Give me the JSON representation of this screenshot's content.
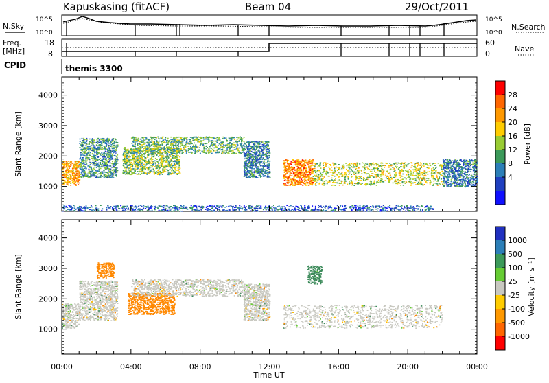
{
  "header": {
    "station": "Kapuskasing (fitACF)",
    "beam": "Beam 04",
    "date": "29/Oct/2011"
  },
  "strip1": {
    "left_label": "N.Sky",
    "right_label": "N.Search",
    "y_top_label": "10^5",
    "y_bottom_label": "10^0",
    "right_top_label": "10^5",
    "right_bottom_label": "10^0"
  },
  "strip2": {
    "left_label_1": "Freq.",
    "left_label_2": "[MHz]",
    "y_top": "18",
    "y_bottom": "8",
    "right_label": "Nave",
    "right_top": "60",
    "right_bottom": "0"
  },
  "cpid": {
    "label": "CPID",
    "value": "themis 3300"
  },
  "power_panel": {
    "ylabel": "Slant Range [km]",
    "colorbar_label": "Power [dB]",
    "colorbar_ticks": [
      "28",
      "24",
      "20",
      "16",
      "12",
      "8",
      "4"
    ],
    "colorbar_colors": [
      "#ff0000",
      "#ff6600",
      "#ff9900",
      "#ffcc00",
      "#99cc33",
      "#3c9a5a",
      "#2c7fb8",
      "#2040c0",
      "#1010ff"
    ]
  },
  "velocity_panel": {
    "ylabel": "Slant Range [km]",
    "colorbar_label": "Velocity [m s⁻¹]",
    "colorbar_ticks": [
      "1000",
      "500",
      "100",
      "25",
      "-25",
      "-100",
      "-500",
      "-1000"
    ],
    "colorbar_colors": [
      "#2030c0",
      "#2c7fb8",
      "#3c9a5a",
      "#66cc33",
      "#c8c8c0",
      "#ffcc00",
      "#ff9900",
      "#ff6600",
      "#ff0000"
    ]
  },
  "xaxis": {
    "label": "Time UT",
    "ticks": [
      "00:00",
      "04:00",
      "08:00",
      "12:00",
      "16:00",
      "20:00",
      "00:00"
    ]
  },
  "chart_data": [
    {
      "type": "heatmap",
      "title": "Power",
      "ylabel": "Slant Range [km]",
      "xlabel": "",
      "x_ticks": [
        "00:00",
        "04:00",
        "08:00",
        "12:00",
        "16:00",
        "20:00",
        "00:00"
      ],
      "y_ticks": [
        1000,
        2000,
        3000,
        4000
      ],
      "ylim": [
        180,
        4600
      ],
      "xlim_hours": [
        0,
        24
      ],
      "colorbar": {
        "label": "Power [dB]",
        "ticks": [
          4,
          8,
          12,
          16,
          20,
          24,
          28
        ],
        "range": [
          0,
          30
        ]
      },
      "scatter_regions": [
        {
          "t_start": 0.0,
          "t_end": 1.0,
          "range_lo": 1050,
          "range_hi": 1850,
          "power": 22
        },
        {
          "t_start": 1.0,
          "t_end": 3.2,
          "range_lo": 1300,
          "range_hi": 2600,
          "power": 10
        },
        {
          "t_start": 3.5,
          "t_end": 6.8,
          "range_lo": 1400,
          "range_hi": 2300,
          "power": 14
        },
        {
          "t_start": 4.0,
          "t_end": 10.5,
          "range_lo": 2100,
          "range_hi": 2650,
          "power": 12
        },
        {
          "t_start": 10.5,
          "t_end": 12.0,
          "range_lo": 1300,
          "range_hi": 2500,
          "power": 8
        },
        {
          "t_start": 12.8,
          "t_end": 14.5,
          "range_lo": 1050,
          "range_hi": 1900,
          "power": 24
        },
        {
          "t_start": 14.5,
          "t_end": 22.0,
          "range_lo": 1050,
          "range_hi": 1800,
          "power": 16
        },
        {
          "t_start": 22.0,
          "t_end": 24.0,
          "range_lo": 1000,
          "range_hi": 1900,
          "power": 8
        },
        {
          "t_start": 0.0,
          "t_end": 21.5,
          "range_lo": 200,
          "range_hi": 400,
          "power": 6
        }
      ]
    },
    {
      "type": "heatmap",
      "title": "Velocity",
      "ylabel": "Slant Range [km]",
      "xlabel": "Time UT",
      "x_ticks": [
        "00:00",
        "04:00",
        "08:00",
        "12:00",
        "16:00",
        "20:00",
        "00:00"
      ],
      "y_ticks": [
        1000,
        2000,
        3000,
        4000
      ],
      "ylim": [
        180,
        4600
      ],
      "xlim_hours": [
        0,
        24
      ],
      "colorbar": {
        "label": "Velocity [m s⁻¹]",
        "ticks": [
          -1000,
          -500,
          -100,
          -25,
          25,
          100,
          500,
          1000
        ]
      },
      "scatter_regions": [
        {
          "t_start": 0.0,
          "t_end": 1.0,
          "range_lo": 1050,
          "range_hi": 1850,
          "velocity": 0
        },
        {
          "t_start": 1.0,
          "t_end": 3.2,
          "range_lo": 1300,
          "range_hi": 2600,
          "velocity": 0
        },
        {
          "t_start": 3.8,
          "t_end": 6.5,
          "range_lo": 1500,
          "range_hi": 2200,
          "velocity": -300
        },
        {
          "t_start": 4.0,
          "t_end": 10.5,
          "range_lo": 2100,
          "range_hi": 2650,
          "velocity": 0
        },
        {
          "t_start": 10.5,
          "t_end": 12.0,
          "range_lo": 1300,
          "range_hi": 2500,
          "velocity": 0
        },
        {
          "t_start": 12.8,
          "t_end": 22.0,
          "range_lo": 1050,
          "range_hi": 1800,
          "velocity": 0
        },
        {
          "t_start": 14.2,
          "t_end": 15.0,
          "range_lo": 2500,
          "range_hi": 3100,
          "velocity": 150
        },
        {
          "t_start": 2.0,
          "t_end": 3.0,
          "range_lo": 2700,
          "range_hi": 3200,
          "velocity": -400
        }
      ]
    }
  ]
}
